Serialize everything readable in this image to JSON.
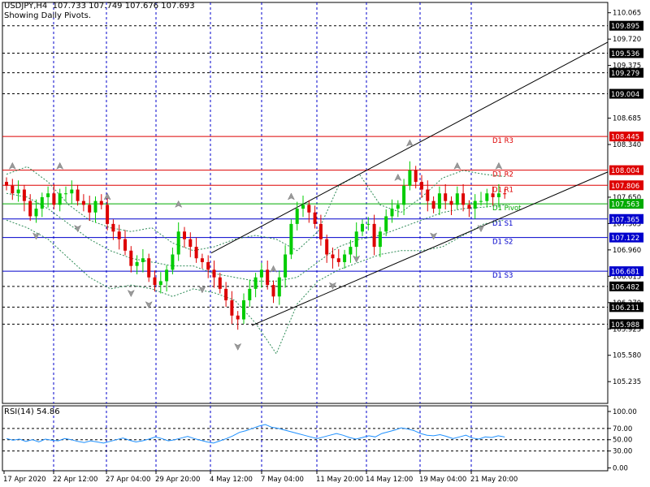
{
  "header": {
    "title": "USDJPY,H4  107.733 107.749 107.676 107.693",
    "subtitle": "Showing Daily Pivots."
  },
  "rsi_label": "RSI(14) 54.86",
  "colors": {
    "bull": "#00cc00",
    "bear": "#dd0000",
    "pivot_resistance": "#dd0000",
    "pivot_center": "#00aa00",
    "pivot_support": "#0000cc",
    "grid": "#0000cc",
    "envelope": "#2e8b57",
    "rsi": "#1e90ff",
    "channel": "#000000"
  },
  "chart_data": [
    {
      "type": "candlestick",
      "title": "USDJPY,H4",
      "ylim": [
        104.95,
        110.2
      ],
      "y_ticks": [
        "110.065",
        "109.720",
        "109.375",
        "108.685",
        "108.340",
        "107.650",
        "107.305",
        "106.960",
        "106.615",
        "106.270",
        "105.925",
        "105.580",
        "105.235"
      ],
      "x_ticks": [
        "17 Apr 2020",
        "22 Apr 12:00",
        "27 Apr 04:00",
        "29 Apr 20:00",
        "4 May 12:00",
        "7 May 04:00",
        "11 May 20:00",
        "14 May 12:00",
        "19 May 04:00",
        "21 May 20:00"
      ],
      "pivots": [
        {
          "name": "D1 R3",
          "value": 108.445,
          "label": "108.445",
          "kind": "resistance"
        },
        {
          "name": "D1 R2",
          "value": 108.004,
          "label": "108.004",
          "kind": "resistance"
        },
        {
          "name": "D1 R1",
          "value": 107.806,
          "label": "107.806",
          "kind": "resistance"
        },
        {
          "name": "D1 Pivot",
          "value": 107.563,
          "label": "107.563",
          "kind": "pivot"
        },
        {
          "name": "D1 S1",
          "value": 107.365,
          "label": "107.365",
          "kind": "support"
        },
        {
          "name": "D1 S2",
          "value": 107.122,
          "label": "107.122",
          "kind": "support"
        },
        {
          "name": "D1 S3",
          "value": 106.681,
          "label": "106.681",
          "kind": "support"
        }
      ],
      "level_lines": [
        {
          "value": 109.895,
          "label": "109.895"
        },
        {
          "value": 109.536,
          "label": "109.536"
        },
        {
          "value": 109.279,
          "label": "109.279"
        },
        {
          "value": 109.004,
          "label": "109.004"
        },
        {
          "value": 106.482,
          "label": "106.482"
        },
        {
          "value": 106.211,
          "label": "106.211"
        },
        {
          "value": 105.988,
          "label": "105.988"
        }
      ],
      "channel": {
        "upper": [
          [
            0,
            106.92
          ],
          [
            46.5,
            109.68
          ]
        ],
        "lower": [
          [
            0,
            105.97
          ],
          [
            46.5,
            107.98
          ]
        ]
      },
      "closes": [
        107.8,
        107.7,
        107.75,
        107.6,
        107.4,
        107.5,
        107.65,
        107.7,
        107.55,
        107.7,
        107.7,
        107.75,
        107.6,
        107.55,
        107.45,
        107.6,
        107.55,
        107.3,
        107.2,
        107.1,
        106.95,
        106.75,
        106.8,
        106.85,
        106.6,
        106.5,
        106.55,
        106.7,
        106.9,
        107.2,
        107.1,
        107.0,
        106.85,
        106.8,
        106.7,
        106.6,
        106.45,
        106.3,
        106.1,
        106.05,
        106.3,
        106.45,
        106.6,
        106.7,
        106.5,
        106.35,
        106.6,
        106.9,
        107.3,
        107.5,
        107.55,
        107.45,
        107.3,
        107.1,
        106.9,
        106.85,
        106.8,
        106.9,
        107.0,
        107.2,
        107.3,
        107.3,
        107.0,
        107.2,
        107.4,
        107.5,
        107.55,
        107.8,
        108.0,
        107.85,
        107.75,
        107.6,
        107.5,
        107.7,
        107.6,
        107.55,
        107.7,
        107.55,
        107.5,
        107.6,
        107.6,
        107.7,
        107.65,
        107.7,
        107.69
      ],
      "ma": [
        107.7,
        107.65,
        107.5,
        107.3,
        107.1,
        106.95,
        106.85,
        106.8,
        106.75,
        106.75,
        106.65,
        106.6,
        106.55,
        106.55,
        106.6,
        106.8,
        107.0,
        107.1,
        107.15,
        107.25,
        107.35,
        107.45,
        107.5,
        107.52,
        107.55
      ],
      "upper_band": [
        107.95,
        108.05,
        107.85,
        107.55,
        107.35,
        107.25,
        107.2,
        107.25,
        107.05,
        106.95,
        107.0,
        107.1,
        107.15,
        107.1,
        106.95,
        107.2,
        107.8,
        107.95,
        107.55,
        107.45,
        107.65,
        107.9,
        108.0,
        107.95,
        107.92
      ],
      "lower_band": [
        107.35,
        107.25,
        107.1,
        106.85,
        106.6,
        106.45,
        106.5,
        106.45,
        106.35,
        106.45,
        106.4,
        106.3,
        106.0,
        105.6,
        106.25,
        106.55,
        106.7,
        106.8,
        106.9,
        106.95,
        106.95,
        107.0,
        107.15,
        107.3,
        107.35
      ]
    },
    {
      "type": "line",
      "title": "RSI(14) 54.86",
      "ylim": [
        -5,
        110
      ],
      "y_ticks": [
        "100.00",
        "70.00",
        "50.00",
        "30.00",
        "0.00"
      ],
      "ref_levels": [
        70,
        50,
        30
      ],
      "values": [
        52,
        49,
        51,
        47,
        50,
        46,
        51,
        49,
        48,
        52,
        50,
        47,
        45,
        48,
        46,
        44,
        47,
        50,
        53,
        49,
        46,
        48,
        51,
        55,
        52,
        48,
        50,
        53,
        56,
        52,
        49,
        46,
        44,
        48,
        52,
        57,
        63,
        66,
        70,
        74,
        77,
        72,
        70,
        67,
        64,
        61,
        58,
        55,
        52,
        55,
        58,
        61,
        58,
        54,
        51,
        54,
        57,
        55,
        61,
        64,
        67,
        71,
        69,
        66,
        61,
        58,
        57,
        59,
        56,
        52,
        55,
        58,
        53,
        51,
        55,
        54,
        57,
        54.86
      ]
    }
  ]
}
